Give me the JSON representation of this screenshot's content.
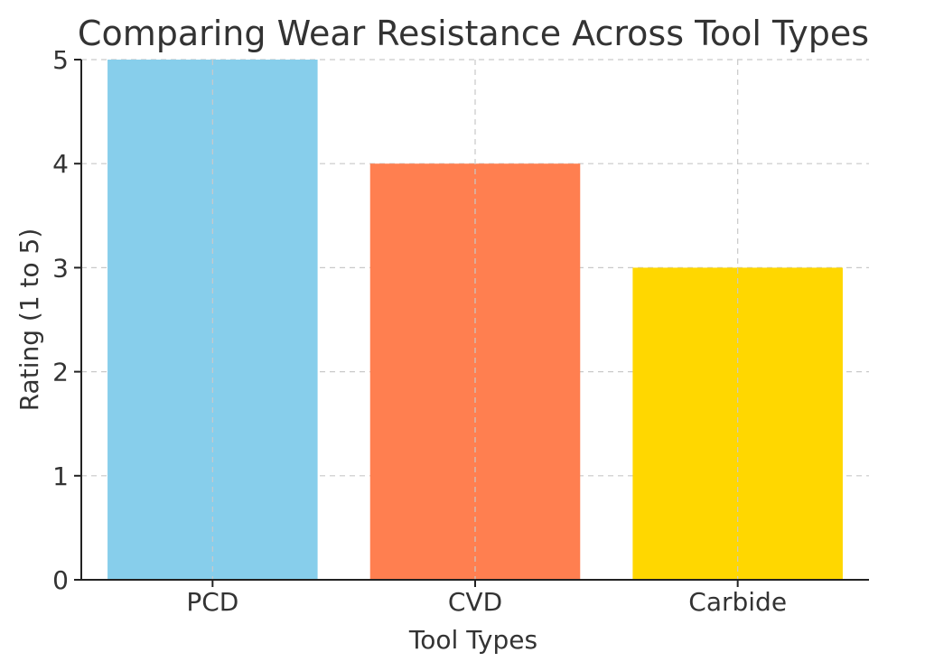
{
  "chart_data": {
    "type": "bar",
    "title": "Comparing Wear Resistance Across Tool Types",
    "xlabel": "Tool Types",
    "ylabel": "Rating (1 to 5)",
    "categories": [
      "PCD",
      "CVD",
      "Carbide"
    ],
    "values": [
      5,
      4,
      3
    ],
    "colors": [
      "#87CEEB",
      "#FF7F50",
      "#FFD700"
    ],
    "ylim": [
      0,
      5
    ],
    "yticks": [
      0,
      1,
      2,
      3,
      4,
      5
    ],
    "grid": true,
    "legend": "none"
  }
}
